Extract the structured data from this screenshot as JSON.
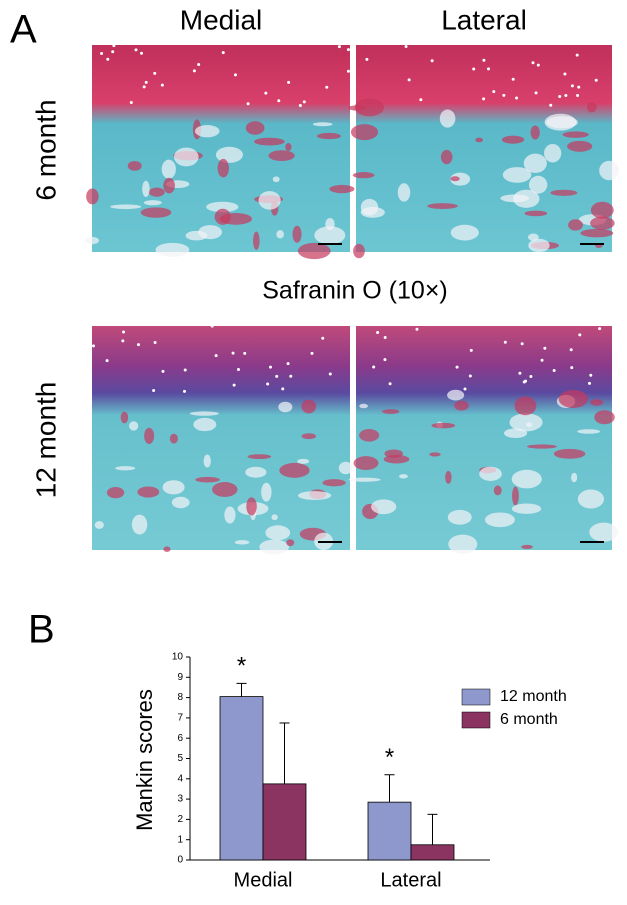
{
  "panel_a": {
    "label": "A",
    "columns": [
      "Medial",
      "Lateral"
    ],
    "rows": [
      "6 month",
      "12 month"
    ],
    "stain": "Safranin O (10×)"
  },
  "panel_b": {
    "label": "B"
  },
  "chart_data": {
    "type": "bar",
    "ylabel": "Mankin scores",
    "categories": [
      "Medial",
      "Lateral"
    ],
    "series": [
      {
        "name": "12 month",
        "color": "#8e98cc",
        "values": [
          8.05,
          2.85
        ],
        "errors": [
          0.65,
          1.35
        ],
        "annotations": [
          "*",
          "*"
        ]
      },
      {
        "name": "6 month",
        "color": "#8b3462",
        "values": [
          3.75,
          0.75
        ],
        "errors": [
          3.0,
          1.5
        ]
      }
    ],
    "ylim": [
      0,
      10
    ],
    "yticks": [
      0,
      1,
      2,
      3,
      4,
      5,
      6,
      7,
      8,
      9,
      10
    ],
    "legend": "upper right"
  }
}
